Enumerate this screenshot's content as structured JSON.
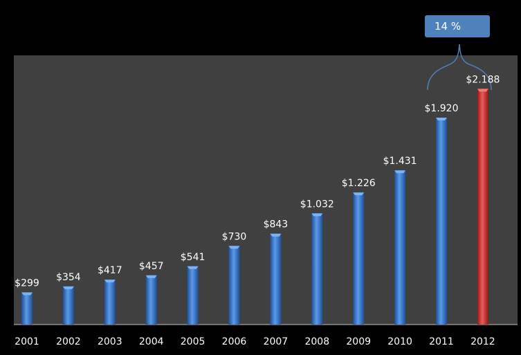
{
  "chart_data": {
    "type": "bar",
    "categories": [
      "2001",
      "2002",
      "2003",
      "2004",
      "2005",
      "2006",
      "2007",
      "2008",
      "2009",
      "2010",
      "2011",
      "2012"
    ],
    "values": [
      299,
      354,
      417,
      457,
      541,
      730,
      843,
      1032,
      1226,
      1431,
      1920,
      2188
    ],
    "data_labels": [
      "$299",
      "$354",
      "$417",
      "$457",
      "$541",
      "$730",
      "$843",
      "$1.032",
      "$1.226",
      "$1.431",
      "$1.920",
      "$2.188"
    ],
    "highlight_index": 11,
    "ylim": [
      0,
      2500
    ],
    "grid": false,
    "legend": "none",
    "title": "",
    "xlabel": "",
    "ylabel": "",
    "annotation": {
      "text": "14 %",
      "from_index": 10,
      "to_index": 11
    },
    "colors": {
      "bar": "#3f7fd4",
      "bar_dark": "#1f4f96",
      "highlight": "#e03a36",
      "highlight_dark": "#8e1b18",
      "plot_bg": "#404040",
      "page_bg": "#000000",
      "text": "#ffffff"
    }
  }
}
